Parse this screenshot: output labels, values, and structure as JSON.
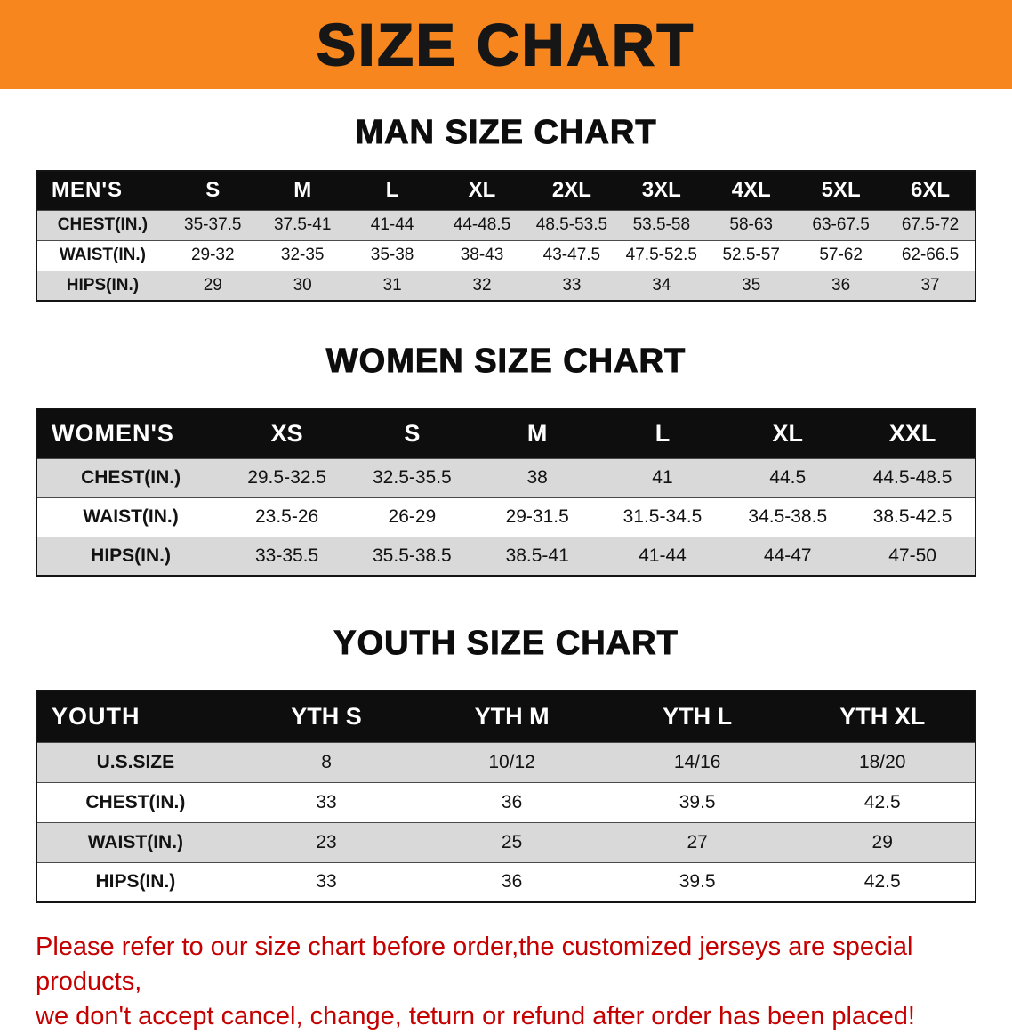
{
  "banner": {
    "title": "SIZE CHART"
  },
  "colors": {
    "banner_bg": "#F6861D",
    "table_header_bg": "#0E0E0E",
    "stripe_bg": "#D9D9D9",
    "disclaimer_text": "#C40000"
  },
  "chart_data": [
    {
      "type": "table",
      "id": "men",
      "title": "MAN SIZE CHART",
      "columns": [
        "MEN'S",
        "S",
        "M",
        "L",
        "XL",
        "2XL",
        "3XL",
        "4XL",
        "5XL",
        "6XL"
      ],
      "rows": [
        [
          "CHEST(IN.)",
          "35-37.5",
          "37.5-41",
          "41-44",
          "44-48.5",
          "48.5-53.5",
          "53.5-58",
          "58-63",
          "63-67.5",
          "67.5-72"
        ],
        [
          "WAIST(IN.)",
          "29-32",
          "32-35",
          "35-38",
          "38-43",
          "43-47.5",
          "47.5-52.5",
          "52.5-57",
          "57-62",
          "62-66.5"
        ],
        [
          "HIPS(IN.)",
          "29",
          "30",
          "31",
          "32",
          "33",
          "34",
          "35",
          "36",
          "37"
        ]
      ]
    },
    {
      "type": "table",
      "id": "women",
      "title": "WOMEN SIZE CHART",
      "columns": [
        "WOMEN'S",
        "XS",
        "S",
        "M",
        "L",
        "XL",
        "XXL"
      ],
      "rows": [
        [
          "CHEST(IN.)",
          "29.5-32.5",
          "32.5-35.5",
          "38",
          "41",
          "44.5",
          "44.5-48.5"
        ],
        [
          "WAIST(IN.)",
          "23.5-26",
          "26-29",
          "29-31.5",
          "31.5-34.5",
          "34.5-38.5",
          "38.5-42.5"
        ],
        [
          "HIPS(IN.)",
          "33-35.5",
          "35.5-38.5",
          "38.5-41",
          "41-44",
          "44-47",
          "47-50"
        ]
      ]
    },
    {
      "type": "table",
      "id": "youth",
      "title": "YOUTH SIZE CHART",
      "columns": [
        "YOUTH",
        "YTH S",
        "YTH M",
        "YTH L",
        "YTH XL"
      ],
      "rows": [
        [
          "U.S.SIZE",
          "8",
          "10/12",
          "14/16",
          "18/20"
        ],
        [
          "CHEST(IN.)",
          "33",
          "36",
          "39.5",
          "42.5"
        ],
        [
          "WAIST(IN.)",
          "23",
          "25",
          "27",
          "29"
        ],
        [
          "HIPS(IN.)",
          "33",
          "36",
          "39.5",
          "42.5"
        ]
      ]
    }
  ],
  "disclaimer": {
    "line1": "Please refer to our size chart before order,the customized jerseys are special products,",
    "line2": "we don't accept cancel, change, teturn or refund after order has been placed!"
  }
}
